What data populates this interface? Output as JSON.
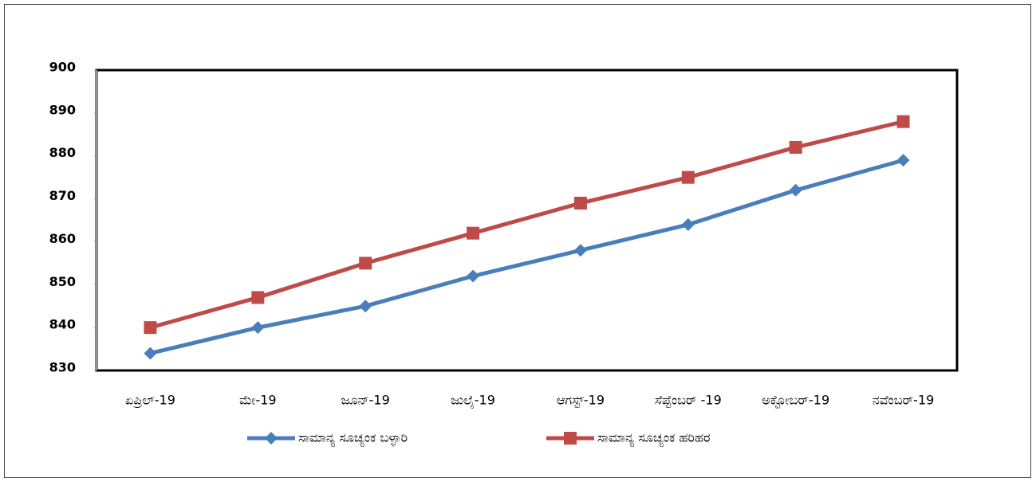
{
  "chart_data": {
    "type": "line",
    "categories": [
      "ಏಪ್ರಿಲ್-19",
      "ಮೇ-19",
      "ಜೂನ್-19",
      "ಜುಲೈ-19",
      "ಆಗಸ್ಟ್-19",
      "ಸೆಪ್ಟೆಂಬರ್ -19",
      "ಅಕ್ಟೋಬರ್-19",
      "ನವೆಂಬರ್-19"
    ],
    "series": [
      {
        "name": "ಸಾಮಾನ್ಯ ಸೂಚ್ಯಂಕ ಬಳ್ಳಾರಿ",
        "color": "#4a7ebb",
        "marker": "diamond",
        "values": [
          834,
          840,
          845,
          852,
          858,
          864,
          872,
          879
        ]
      },
      {
        "name": "ಸಾಮಾನ್ಯ ಸೂಚ್ಯಂಕ ಹರಿಹರ",
        "color": "#be4b48",
        "marker": "square",
        "values": [
          840,
          847,
          855,
          862,
          869,
          875,
          882,
          888
        ]
      }
    ],
    "ylim": [
      830,
      900
    ],
    "yticks": [
      830,
      840,
      850,
      860,
      870,
      880,
      890,
      900
    ],
    "grid": false,
    "legend": "bottom"
  }
}
